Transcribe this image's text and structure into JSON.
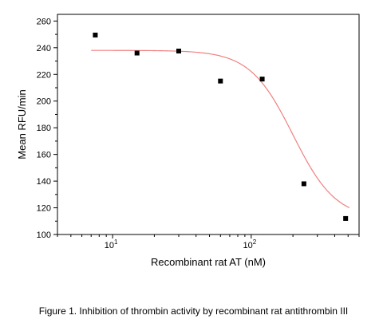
{
  "caption": "Figure 1. Inhibition of thrombin activity by recombinant rat antithrombin III",
  "chart_data": {
    "type": "scatter",
    "xlabel": "Recombinant rat AT (nM)",
    "ylabel": "Mean RFU/min",
    "xscale": "log",
    "xlim": [
      4,
      600
    ],
    "ylim": [
      100,
      265
    ],
    "x_tick_values": [
      10,
      100
    ],
    "x_tick_labels": [
      {
        "base": "10",
        "exp": "1"
      },
      {
        "base": "10",
        "exp": "2"
      }
    ],
    "y_ticks": [
      100,
      120,
      140,
      160,
      180,
      200,
      220,
      240,
      260
    ],
    "points": [
      {
        "x": 7.5,
        "y": 249.5
      },
      {
        "x": 15,
        "y": 236
      },
      {
        "x": 30,
        "y": 237.5
      },
      {
        "x": 60,
        "y": 215
      },
      {
        "x": 120,
        "y": 216.5
      },
      {
        "x": 240,
        "y": 138
      },
      {
        "x": 480,
        "y": 112
      }
    ],
    "fit_curve": {
      "type": "sigmoidal",
      "top": 238,
      "bottom": 111.5,
      "ic50": 200,
      "hill": 2.8,
      "x_range": [
        7,
        510
      ]
    },
    "colors": {
      "points": "#000000",
      "fit_curve": "#f08080",
      "axis": "#000000"
    },
    "grid": false,
    "legend": "none"
  }
}
